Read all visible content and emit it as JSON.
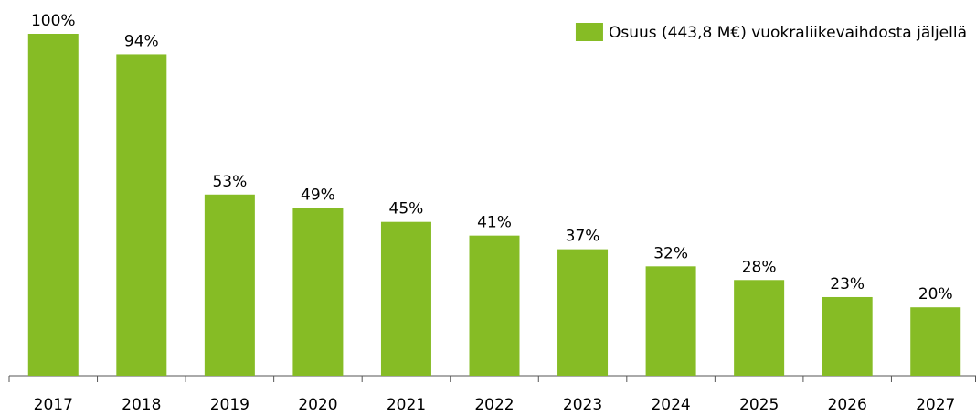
{
  "chart_data": {
    "type": "bar",
    "categories": [
      "2017",
      "2018",
      "2019",
      "2020",
      "2021",
      "2022",
      "2023",
      "2024",
      "2025",
      "2026",
      "2027"
    ],
    "series": [
      {
        "name": "Osuus (443,8 M€) vuokraliikevaihdosta jäljellä",
        "color": "#86bc25",
        "values": [
          100,
          94,
          53,
          49,
          45,
          41,
          37,
          32,
          28,
          23,
          20
        ],
        "value_labels": [
          "100%",
          "94%",
          "53%",
          "49%",
          "45%",
          "41%",
          "37%",
          "32%",
          "28%",
          "23%",
          "20%"
        ]
      }
    ],
    "legend": "top-right"
  }
}
